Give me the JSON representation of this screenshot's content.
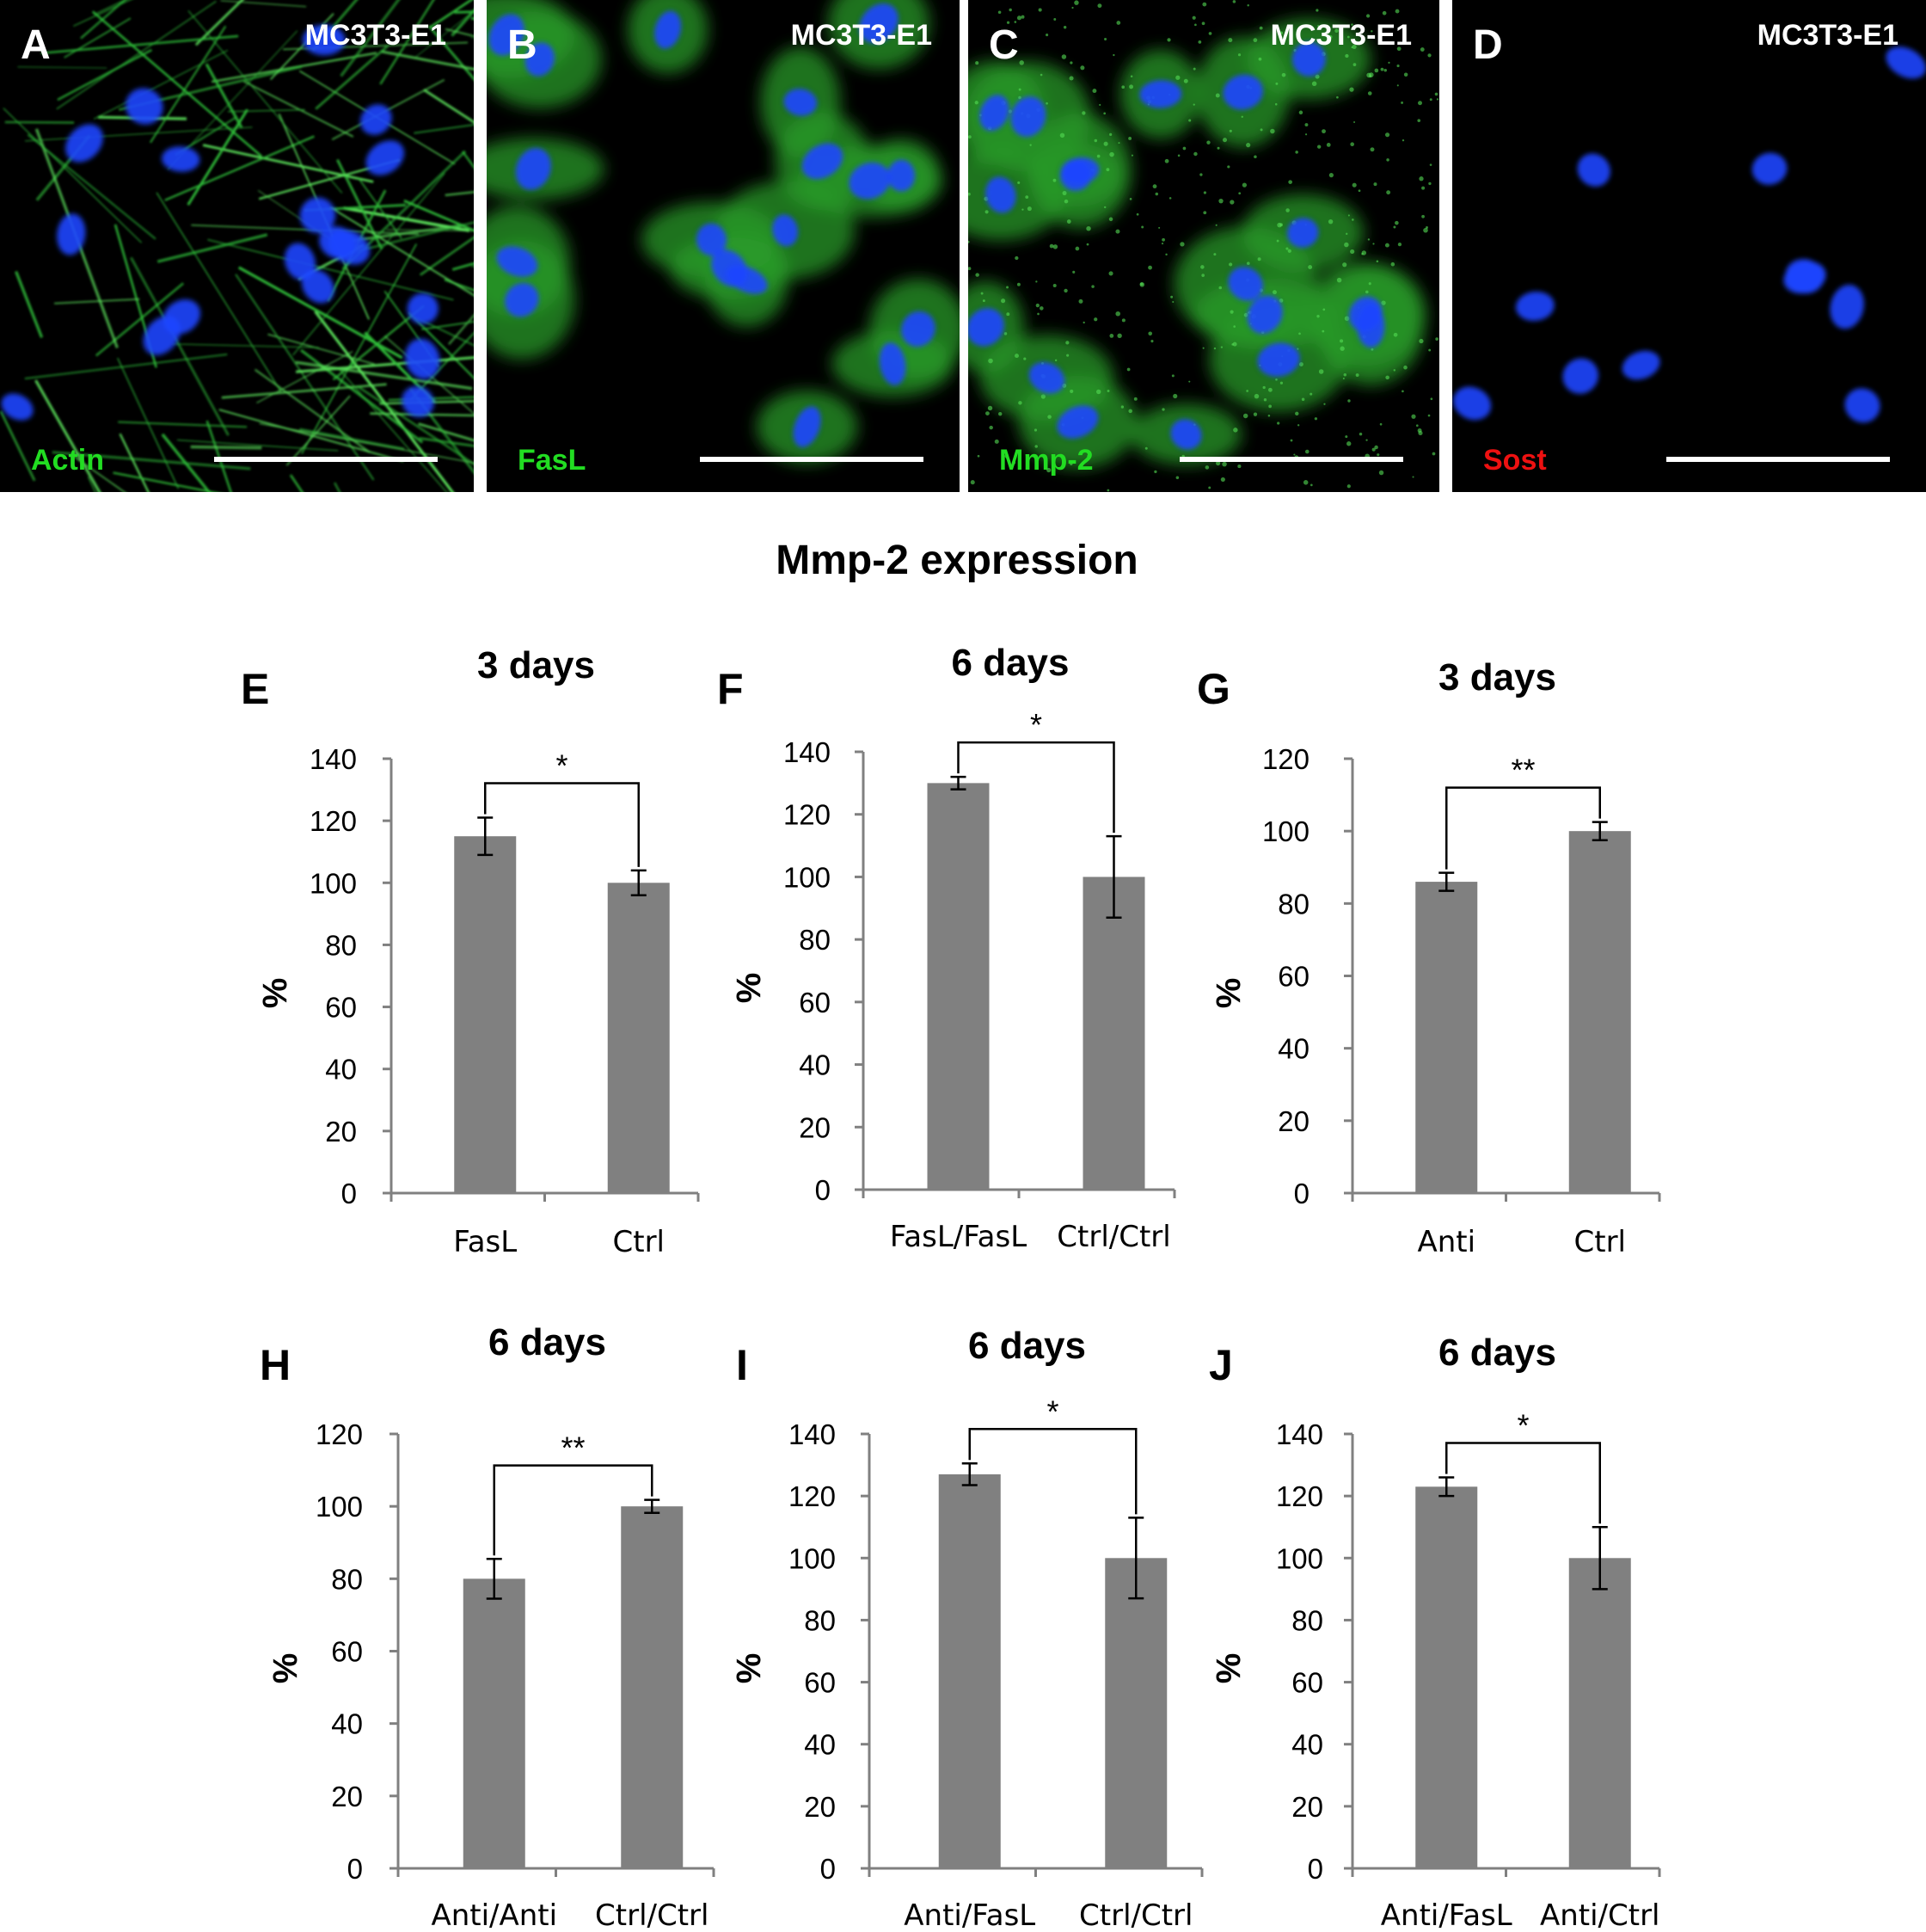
{
  "figure_title": "Mmp-2 expression",
  "micrographs": [
    {
      "letter": "A",
      "cell_line": "MC3T3-E1",
      "stain": "Actin",
      "stain_color": "#22dd22",
      "style": "actin"
    },
    {
      "letter": "B",
      "cell_line": "MC3T3-E1",
      "stain": "FasL",
      "stain_color": "#22dd22",
      "style": "cyto"
    },
    {
      "letter": "C",
      "cell_line": "MC3T3-E1",
      "stain": "Mmp-2",
      "stain_color": "#22dd22",
      "style": "punct"
    },
    {
      "letter": "D",
      "cell_line": "MC3T3-E1",
      "stain": "Sost",
      "stain_color": "#ee1111",
      "style": "dark"
    }
  ],
  "colors": {
    "bar": "#808080",
    "axis": "#808080",
    "nuclei": "#1a3cff",
    "green": "#22cc22"
  },
  "chart_data": [
    {
      "panel": "E",
      "type": "bar",
      "title": "3 days",
      "ylabel": "%",
      "ylim": [
        0,
        140
      ],
      "yticks": [
        0,
        20,
        40,
        60,
        80,
        100,
        120,
        140
      ],
      "categories": [
        "FasL",
        "Ctrl"
      ],
      "values": [
        115,
        100
      ],
      "errors": [
        6,
        4
      ],
      "significance": "*"
    },
    {
      "panel": "F",
      "type": "bar",
      "title": "6 days",
      "ylabel": "%",
      "ylim": [
        0,
        140
      ],
      "yticks": [
        0,
        20,
        40,
        60,
        80,
        100,
        120,
        140
      ],
      "categories": [
        "FasL/FasL",
        "Ctrl/Ctrl"
      ],
      "values": [
        130,
        100
      ],
      "errors": [
        2,
        13
      ],
      "significance": "*"
    },
    {
      "panel": "G",
      "type": "bar",
      "title": "3 days",
      "ylabel": "%",
      "ylim": [
        0,
        120
      ],
      "yticks": [
        0,
        20,
        40,
        60,
        80,
        100,
        120
      ],
      "categories": [
        "Anti",
        "Ctrl"
      ],
      "values": [
        86,
        100
      ],
      "errors": [
        2.5,
        2.5
      ],
      "significance": "**"
    },
    {
      "panel": "H",
      "type": "bar",
      "title": "6 days",
      "ylabel": "%",
      "ylim": [
        0,
        120
      ],
      "yticks": [
        0,
        20,
        40,
        60,
        80,
        100,
        120
      ],
      "categories": [
        "Anti/Anti",
        "Ctrl/Ctrl"
      ],
      "values": [
        80,
        100
      ],
      "errors": [
        5.5,
        1.8
      ],
      "significance": "**"
    },
    {
      "panel": "I",
      "type": "bar",
      "title": "6 days",
      "ylabel": "%",
      "ylim": [
        0,
        140
      ],
      "yticks": [
        0,
        20,
        40,
        60,
        80,
        100,
        120,
        140
      ],
      "categories": [
        "Anti/FasL",
        "Ctrl/Ctrl"
      ],
      "values": [
        127,
        100
      ],
      "errors": [
        3.5,
        13
      ],
      "significance": "*"
    },
    {
      "panel": "J",
      "type": "bar",
      "title": "6 days",
      "ylabel": "%",
      "ylim": [
        0,
        140
      ],
      "yticks": [
        0,
        20,
        40,
        60,
        80,
        100,
        120,
        140
      ],
      "categories": [
        "Anti/FasL",
        "Anti/Ctrl"
      ],
      "values": [
        123,
        100
      ],
      "errors": [
        3,
        10
      ],
      "significance": "*"
    }
  ]
}
